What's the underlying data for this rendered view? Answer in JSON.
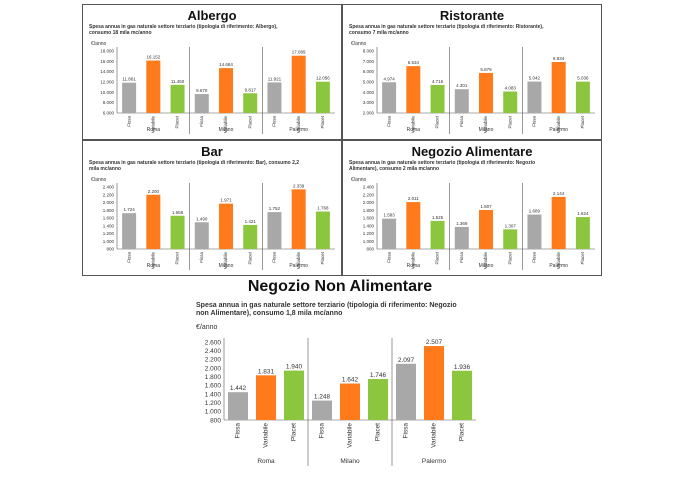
{
  "colors": {
    "Fissa": "#a8a8a8",
    "Variabile": "#ff7a1a",
    "Placet": "#8cc63f"
  },
  "chart_data": [
    {
      "type": "bar",
      "title": "Albergo",
      "subtitle": "Spesa annua in gas naturale settore terziario (tipologia di riferimento: Albergo), consumo 18 mila mc/anno",
      "ylabel": "€/anno",
      "ylim": [
        6000,
        18000
      ],
      "yticks": [
        "6.000",
        "8.000",
        "10.000",
        "12.000",
        "14.000",
        "16.000",
        "18.000"
      ],
      "groups": [
        "Roma",
        "Milano",
        "Palermo"
      ],
      "series_names": [
        "Fissa",
        "Variabile",
        "Placet"
      ],
      "values": [
        [
          11861,
          16152,
          11450
        ],
        [
          9670,
          14684,
          9817
        ],
        [
          11921,
          17089,
          12056
        ]
      ],
      "labels": [
        [
          "11.861",
          "16.152",
          "11.450"
        ],
        [
          "9.670",
          "14.684",
          "9.817"
        ],
        [
          "11.921",
          "17.089",
          "12.056"
        ]
      ]
    },
    {
      "type": "bar",
      "title": "Ristorante",
      "subtitle": "Spesa annua in gas naturale settore terziario (tipologia di riferimento: Ristorante), consumo 7 mila mc/anno",
      "ylabel": "€/anno",
      "ylim": [
        2000,
        8000
      ],
      "yticks": [
        "2.000",
        "3.000",
        "4.000",
        "5.000",
        "6.000",
        "7.000",
        "8.000"
      ],
      "groups": [
        "Roma",
        "Milano",
        "Palermo"
      ],
      "series_names": [
        "Fissa",
        "Variabile",
        "Placet"
      ],
      "values": [
        [
          4974,
          6534,
          4716
        ],
        [
          4301,
          5879,
          4083
        ],
        [
          5042,
          6934,
          5036
        ]
      ],
      "labels": [
        [
          "4.974",
          "6.534",
          "4.716"
        ],
        [
          "4.301",
          "5.879",
          "4.083"
        ],
        [
          "5.042",
          "6.934",
          "5.036"
        ]
      ]
    },
    {
      "type": "bar",
      "title": "Bar",
      "subtitle": "Spesa annua in gas naturale settore terziario (tipologia di riferimento: Bar), consumo 2,2 mila mc/anno",
      "ylabel": "€/anno",
      "ylim": [
        800,
        2400
      ],
      "yticks": [
        "800",
        "1.000",
        "1.200",
        "1.400",
        "1.600",
        "1.800",
        "2.000",
        "2.200",
        "2.400"
      ],
      "groups": [
        "Roma",
        "Milano",
        "Palermo"
      ],
      "series_names": [
        "Fissa",
        "Variabile",
        "Placet"
      ],
      "values": [
        [
          1724,
          2200,
          1658
        ],
        [
          1490,
          1971,
          1421
        ],
        [
          1752,
          2339,
          1768
        ]
      ],
      "labels": [
        [
          "1.724",
          "2.200",
          "1.658"
        ],
        [
          "1.490",
          "1.971",
          "1.421"
        ],
        [
          "1.752",
          "2.339",
          "1.768"
        ]
      ]
    },
    {
      "type": "bar",
      "title": "Negozio Alimentare",
      "subtitle": "Spesa annua in gas naturale settore terziario (tipologia di riferimento: Negozio Alimentare), consumo 2 mila mc/anno",
      "ylabel": "€/anno",
      "ylim": [
        800,
        2400
      ],
      "yticks": [
        "800",
        "1.000",
        "1.200",
        "1.400",
        "1.600",
        "1.800",
        "2.000",
        "2.200",
        "2.400"
      ],
      "groups": [
        "Roma",
        "Milano",
        "Palermo"
      ],
      "series_names": [
        "Fissa",
        "Variabile",
        "Placet"
      ],
      "values": [
        [
          1583,
          2011,
          1525
        ],
        [
          1369,
          1807,
          1307
        ],
        [
          1689,
          2144,
          1624
        ]
      ],
      "labels": [
        [
          "1.583",
          "2.011",
          "1.525"
        ],
        [
          "1.369",
          "1.807",
          "1.307"
        ],
        [
          "1.689",
          "2.144",
          "1.624"
        ]
      ]
    },
    {
      "type": "bar",
      "title": "Negozio Non Alimentare",
      "subtitle": "Spesa annua in gas naturale settore terziario (tipologia di riferimento: Negozio non Alimentare), consumo 1,8 mila mc/anno",
      "ylabel": "€/anno",
      "ylim": [
        800,
        2600
      ],
      "yticks": [
        "800",
        "1.000",
        "1.200",
        "1.400",
        "1.600",
        "1.800",
        "2.000",
        "2.200",
        "2.400",
        "2.600"
      ],
      "groups": [
        "Roma",
        "Milano",
        "Palermo"
      ],
      "series_names": [
        "Fissa",
        "Variabile",
        "Placet"
      ],
      "values": [
        [
          1442,
          1831,
          1940
        ],
        [
          1248,
          1642,
          1746
        ],
        [
          2097,
          2507,
          1936
        ]
      ],
      "labels": [
        [
          "1.442",
          "1.831",
          "1.940"
        ],
        [
          "1.248",
          "1.642",
          "1.746"
        ],
        [
          "2.097",
          "2.507",
          "1.936"
        ]
      ]
    }
  ]
}
